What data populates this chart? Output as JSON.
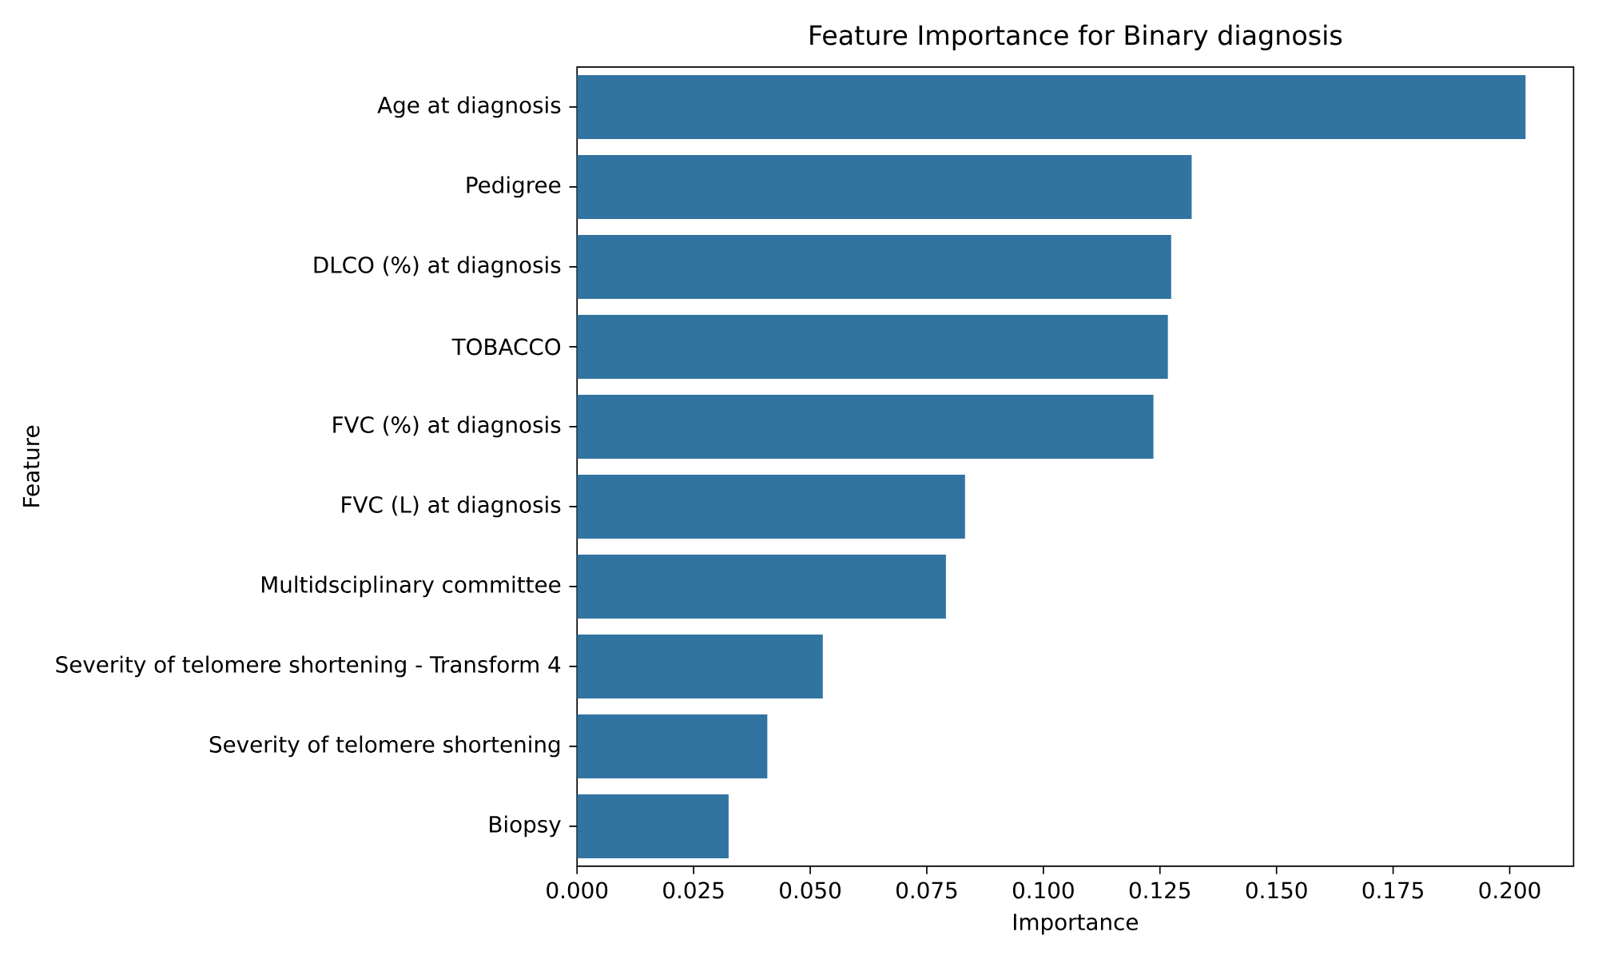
{
  "chart_data": {
    "type": "bar",
    "orientation": "horizontal",
    "title": "Feature Importance for Binary diagnosis",
    "xlabel": "Importance",
    "ylabel": "Feature",
    "categories": [
      "Age at diagnosis",
      "Pedigree",
      "DLCO (%) at diagnosis",
      "TOBACCO",
      "FVC (%) at diagnosis",
      "FVC (L) at diagnosis",
      "Multidsciplinary committee",
      "Severity of telomere shortening - Transform 4",
      "Severity of telomere shortening",
      "Biopsy"
    ],
    "values": [
      0.2034,
      0.1318,
      0.1274,
      0.1267,
      0.1236,
      0.0832,
      0.0791,
      0.0527,
      0.0408,
      0.0325
    ],
    "color": "#3274a1",
    "xlim": [
      0,
      0.2137
    ],
    "xticks": [
      {
        "value": 0,
        "label": "0.000"
      },
      {
        "value": 0.025,
        "label": "0.025"
      },
      {
        "value": 0.05,
        "label": "0.050"
      },
      {
        "value": 0.075,
        "label": "0.075"
      },
      {
        "value": 0.1,
        "label": "0.100"
      },
      {
        "value": 0.125,
        "label": "0.125"
      },
      {
        "value": 0.15,
        "label": "0.150"
      },
      {
        "value": 0.175,
        "label": "0.175"
      },
      {
        "value": 0.2,
        "label": "0.200"
      }
    ]
  }
}
